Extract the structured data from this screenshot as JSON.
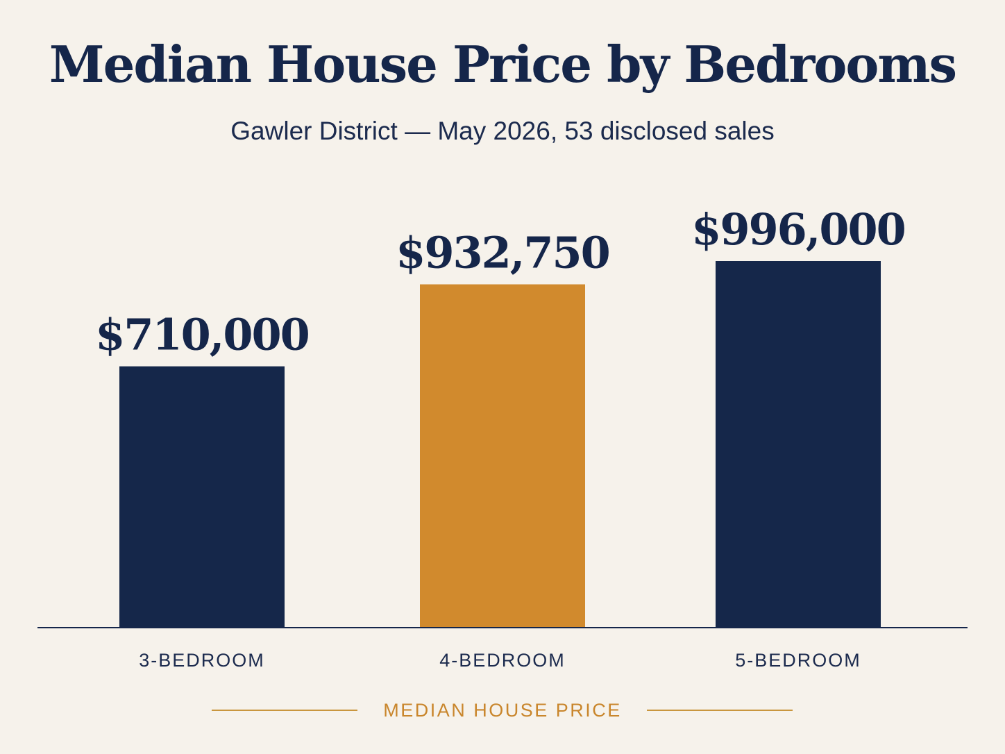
{
  "title": "Median House Price by Bedrooms",
  "subtitle": "Gawler District — May 2026, 53 disclosed sales",
  "footer_label": "MEDIAN HOUSE PRICE",
  "colors": {
    "background": "#f6f2eb",
    "navy": "#15274a",
    "gold": "#d18a2d",
    "axis": "#15264a",
    "footer": "#c9862c"
  },
  "chart_data": {
    "type": "bar",
    "title": "Median House Price by Bedrooms",
    "subtitle": "Gawler District — May 2026, 53 disclosed sales",
    "categories": [
      "3-BEDROOM",
      "4-BEDROOM",
      "5-BEDROOM"
    ],
    "values": [
      710000,
      932750,
      996000
    ],
    "value_labels": [
      "$710,000",
      "$932,750",
      "$996,000"
    ],
    "bar_colors": [
      "#15274a",
      "#d18a2d",
      "#15274a"
    ],
    "xlabel": "MEDIAN HOUSE PRICE",
    "ylabel": "",
    "grid": false,
    "legend": "none"
  }
}
